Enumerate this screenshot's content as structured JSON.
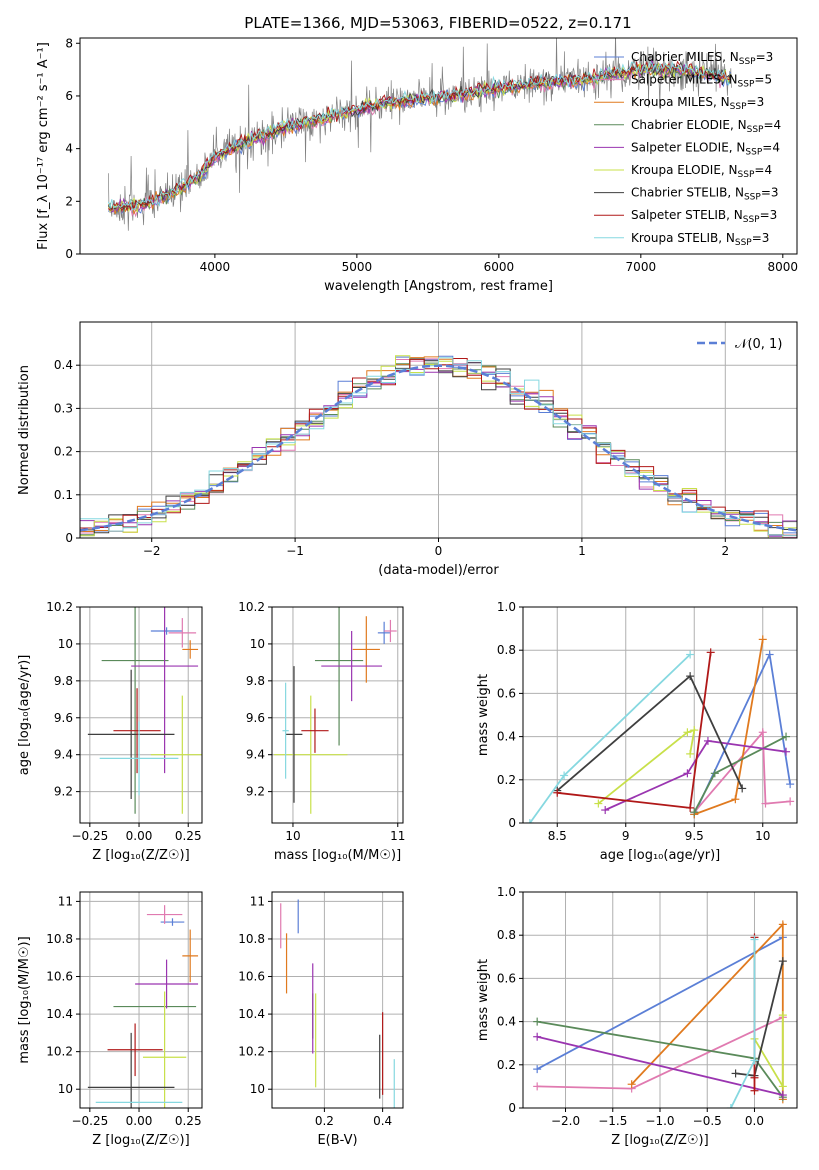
{
  "title": "PLATE=1366, MJD=53063, FIBERID=0522, z=0.171",
  "colors": {
    "Chabrier MILES": "#5b7fd6",
    "Salpeter MILES": "#e07ab0",
    "Kroupa MILES": "#e07a1f",
    "Chabrier ELODIE": "#5a8a5a",
    "Salpeter ELODIE": "#9a35b0",
    "Kroupa ELODIE": "#c8e04a",
    "Chabrier STELIB": "#3f3f3f",
    "Salpeter STELIB": "#b01818",
    "Kroupa STELIB": "#86d8e0",
    "spectrum": "#808080",
    "normal": "#5b7fd6",
    "grid": "#b0b0b0"
  },
  "chart_data": [
    {
      "type": "line",
      "id": "spectrum",
      "title": "PLATE=1366, MJD=53063, FIBERID=0522, z=0.171",
      "xlabel": "wavelength [Angstrom, rest frame]",
      "ylabel": "Flux [f_λ 10⁻¹⁷ erg cm⁻² s⁻¹ A⁻¹]",
      "xlim": [
        3050,
        8100
      ],
      "ylim": [
        0,
        8.2
      ],
      "xticks": [
        4000,
        5000,
        6000,
        7000,
        8000
      ],
      "yticks": [
        0,
        2,
        4,
        6,
        8
      ],
      "grid": false,
      "legend_position": "top-right",
      "legend": [
        "Chabrier MILES, N_SSP=3",
        "Salpeter MILES, N_SSP=5",
        "Kroupa MILES, N_SSP=3",
        "Chabrier ELODIE, N_SSP=4",
        "Salpeter ELODIE, N_SSP=4",
        "Kroupa ELODIE, N_SSP=4",
        "Chabrier STELIB, N_SSP=3",
        "Salpeter STELIB, N_SSP=3",
        "Kroupa STELIB, N_SSP=3"
      ],
      "continuum": {
        "x": [
          3250,
          3500,
          3700,
          3900,
          4000,
          4200,
          4500,
          4800,
          5000,
          5200,
          5500,
          5800,
          6000,
          6300,
          6600,
          6800,
          7000,
          7200,
          7400,
          7600
        ],
        "y": [
          1.7,
          1.9,
          2.3,
          3.0,
          3.7,
          4.2,
          4.8,
          5.2,
          5.5,
          5.7,
          5.9,
          6.1,
          6.3,
          6.5,
          6.6,
          6.8,
          7.0,
          7.0,
          6.9,
          6.7
        ]
      },
      "data_range": [
        3250,
        7640
      ]
    },
    {
      "type": "bar",
      "id": "residuals",
      "xlabel": "(data-model)/error",
      "ylabel": "Normed distribution",
      "xlim": [
        -2.5,
        2.5
      ],
      "ylim": [
        0,
        0.5
      ],
      "xticks": [
        -2,
        -1,
        0,
        1,
        2
      ],
      "yticks": [
        0.0,
        0.1,
        0.2,
        0.3,
        0.4
      ],
      "grid": true,
      "legend_position": "top-right",
      "legend": [
        "𝒩(0, 1)"
      ],
      "bin_width": 0.1
    },
    {
      "type": "scatter",
      "id": "age-vs-Z",
      "xlabel": "Z [log₁₀(Z/Z☉)]",
      "ylabel": "age  [log₁₀(age/yr)]",
      "xlim": [
        -0.3,
        0.32
      ],
      "ylim": [
        9.03,
        10.2
      ],
      "xticks": [
        -0.25,
        0.0,
        0.25
      ],
      "xticklabels": [
        "−0.25",
        "0.00",
        "0.25"
      ],
      "yticks": [
        9.2,
        9.4,
        9.6,
        9.8,
        10.0,
        10.2
      ],
      "grid": true,
      "points": [
        {
          "series": "Chabrier MILES",
          "x": 0.14,
          "y": 10.07,
          "xerr": 0.08,
          "yerr": 0.02
        },
        {
          "series": "Salpeter MILES",
          "x": 0.22,
          "y": 10.06,
          "xerr": 0.07,
          "yerr": 0.08
        },
        {
          "series": "Kroupa MILES",
          "x": 0.26,
          "y": 9.97,
          "xerr": 0.04,
          "yerr": 0.05
        },
        {
          "series": "Chabrier ELODIE",
          "x": -0.02,
          "y": 9.91,
          "xerr": 0.17,
          "yerr": 0.83
        },
        {
          "series": "Salpeter ELODIE",
          "x": 0.13,
          "y": 9.88,
          "xerr": 0.17,
          "yerr": 0.58
        },
        {
          "series": "Kroupa ELODIE",
          "x": 0.22,
          "y": 9.4,
          "xerr": 0.16,
          "yerr": 0.32
        },
        {
          "series": "Chabrier STELIB",
          "x": -0.04,
          "y": 9.51,
          "xerr": 0.22,
          "yerr": 0.35
        },
        {
          "series": "Salpeter STELIB",
          "x": -0.01,
          "y": 9.53,
          "xerr": 0.12,
          "yerr": 0.23
        },
        {
          "series": "Kroupa STELIB",
          "x": 0.0,
          "y": 9.38,
          "xerr": 0.2,
          "yerr": 0.2
        }
      ]
    },
    {
      "type": "scatter",
      "id": "age-vs-mass",
      "xlabel": "mass [log₁₀(M/M☉)]",
      "ylabel": "",
      "xlim": [
        9.8,
        11.05
      ],
      "ylim": [
        9.03,
        10.2
      ],
      "xticks": [
        10,
        11
      ],
      "yticks": [
        9.2,
        9.4,
        9.6,
        9.8,
        10.0,
        10.2
      ],
      "grid": true,
      "points": [
        {
          "series": "Chabrier MILES",
          "x": 10.87,
          "y": 10.06,
          "xerr": 0.06,
          "yerr": 0.06
        },
        {
          "series": "Salpeter MILES",
          "x": 10.93,
          "y": 10.07,
          "xerr": 0.06,
          "yerr": 0.06
        },
        {
          "series": "Kroupa MILES",
          "x": 10.7,
          "y": 9.97,
          "xerr": 0.13,
          "yerr": 0.18
        },
        {
          "series": "Chabrier ELODIE",
          "x": 10.44,
          "y": 9.91,
          "xerr": 0.23,
          "yerr": 0.46
        },
        {
          "series": "Salpeter ELODIE",
          "x": 10.56,
          "y": 9.88,
          "xerr": 0.29,
          "yerr": 0.19
        },
        {
          "series": "Kroupa ELODIE",
          "x": 10.17,
          "y": 9.4,
          "xerr": 0.35,
          "yerr": 0.32
        },
        {
          "series": "Chabrier STELIB",
          "x": 10.01,
          "y": 9.51,
          "xerr": 0.08,
          "yerr": 0.37
        },
        {
          "series": "Salpeter STELIB",
          "x": 10.21,
          "y": 9.53,
          "xerr": 0.13,
          "yerr": 0.12
        },
        {
          "series": "Kroupa STELIB",
          "x": 9.93,
          "y": 9.53,
          "xerr": 0.03,
          "yerr": 0.26
        }
      ]
    },
    {
      "type": "line",
      "id": "weight-vs-age",
      "xlabel": "age  [log₁₀(age/yr)]",
      "ylabel": "mass weight",
      "xlim": [
        8.25,
        10.25
      ],
      "ylim": [
        0,
        1.0
      ],
      "xticks": [
        8.5,
        9.0,
        9.5,
        10.0
      ],
      "yticks": [
        0.0,
        0.2,
        0.4,
        0.6,
        0.8,
        1.0
      ],
      "grid": true,
      "series": [
        {
          "name": "Chabrier MILES",
          "x": [
            9.5,
            10.05,
            10.2
          ],
          "y": [
            0.04,
            0.78,
            0.18
          ]
        },
        {
          "name": "Salpeter MILES",
          "x": [
            9.5,
            10.0,
            10.02,
            10.2
          ],
          "y": [
            0.05,
            0.42,
            0.09,
            0.1
          ]
        },
        {
          "name": "Kroupa MILES",
          "x": [
            9.5,
            9.8,
            10.0
          ],
          "y": [
            0.04,
            0.11,
            0.85
          ]
        },
        {
          "name": "Chabrier ELODIE",
          "x": [
            9.5,
            9.65,
            10.17
          ],
          "y": [
            0.05,
            0.23,
            0.4
          ]
        },
        {
          "name": "Salpeter ELODIE",
          "x": [
            8.85,
            9.45,
            9.6,
            10.17
          ],
          "y": [
            0.06,
            0.23,
            0.38,
            0.33
          ]
        },
        {
          "name": "Kroupa ELODIE",
          "x": [
            8.8,
            9.45,
            9.5,
            9.47
          ],
          "y": [
            0.09,
            0.42,
            0.43,
            0.32
          ]
        },
        {
          "name": "Chabrier STELIB",
          "x": [
            8.5,
            9.47,
            9.85
          ],
          "y": [
            0.15,
            0.68,
            0.16
          ]
        },
        {
          "name": "Salpeter STELIB",
          "x": [
            8.5,
            9.47,
            9.62
          ],
          "y": [
            0.14,
            0.07,
            0.79
          ]
        },
        {
          "name": "Kroupa STELIB",
          "x": [
            8.3,
            8.55,
            9.47
          ],
          "y": [
            0.0,
            0.22,
            0.78
          ]
        }
      ]
    },
    {
      "type": "scatter",
      "id": "mass-vs-Z",
      "xlabel": "Z [log₁₀(Z/Z☉)]",
      "ylabel": "mass [log₁₀(M/M☉)]",
      "xlim": [
        -0.3,
        0.32
      ],
      "ylim": [
        9.9,
        11.05
      ],
      "xticks": [
        -0.25,
        0.0,
        0.25
      ],
      "xticklabels": [
        "−0.25",
        "0.00",
        "0.25"
      ],
      "yticks": [
        10.0,
        10.2,
        10.4,
        10.6,
        10.8,
        11.0
      ],
      "grid": true,
      "points": [
        {
          "series": "Chabrier MILES",
          "x": 0.17,
          "y": 10.89,
          "xerr": 0.06,
          "yerr": 0.02
        },
        {
          "series": "Salpeter MILES",
          "x": 0.13,
          "y": 10.93,
          "xerr": 0.09,
          "yerr": 0.05
        },
        {
          "series": "Kroupa MILES",
          "x": 0.26,
          "y": 10.71,
          "xerr": 0.04,
          "yerr": 0.14
        },
        {
          "series": "Chabrier ELODIE",
          "x": 0.08,
          "y": 10.44,
          "xerr": 0.21,
          "yerr": 0.0
        },
        {
          "series": "Salpeter ELODIE",
          "x": 0.14,
          "y": 10.56,
          "xerr": 0.16,
          "yerr": 0.13
        },
        {
          "series": "Kroupa ELODIE",
          "x": 0.13,
          "y": 10.17,
          "xerr": 0.11,
          "yerr": 0.35
        },
        {
          "series": "Chabrier STELIB",
          "x": -0.04,
          "y": 10.01,
          "xerr": 0.22,
          "yerr": 0.29
        },
        {
          "series": "Salpeter STELIB",
          "x": -0.02,
          "y": 10.21,
          "xerr": 0.14,
          "yerr": 0.14
        },
        {
          "series": "Kroupa STELIB",
          "x": 0.0,
          "y": 9.93,
          "xerr": 0.22,
          "yerr": 0.0
        }
      ]
    },
    {
      "type": "scatter",
      "id": "mass-vs-ebv",
      "xlabel": "E(B-V)",
      "ylabel": "",
      "xlim": [
        0.02,
        0.47
      ],
      "ylim": [
        9.9,
        11.05
      ],
      "xticks": [
        0.2,
        0.4
      ],
      "yticks": [
        10.0,
        10.2,
        10.4,
        10.6,
        10.8,
        11.0
      ],
      "grid": true,
      "points": [
        {
          "series": "Chabrier MILES",
          "x": 0.11,
          "y": 10.92,
          "xerr": 0.0,
          "yerr": 0.09
        },
        {
          "series": "Salpeter MILES",
          "x": 0.05,
          "y": 10.87,
          "xerr": 0.0,
          "yerr": 0.12
        },
        {
          "series": "Kroupa MILES",
          "x": 0.07,
          "y": 10.67,
          "xerr": 0.0,
          "yerr": 0.16
        },
        {
          "series": "Chabrier ELODIE",
          "x": 0.16,
          "y": 10.39,
          "xerr": 0.0,
          "yerr": 0.12
        },
        {
          "series": "Salpeter ELODIE",
          "x": 0.16,
          "y": 10.43,
          "xerr": 0.0,
          "yerr": 0.24
        },
        {
          "series": "Kroupa ELODIE",
          "x": 0.17,
          "y": 10.26,
          "xerr": 0.0,
          "yerr": 0.25
        },
        {
          "series": "Chabrier STELIB",
          "x": 0.39,
          "y": 10.12,
          "xerr": 0.0,
          "yerr": 0.17
        },
        {
          "series": "Salpeter STELIB",
          "x": 0.4,
          "y": 10.19,
          "xerr": 0.0,
          "yerr": 0.22
        },
        {
          "series": "Kroupa STELIB",
          "x": 0.44,
          "y": 10.02,
          "xerr": 0.0,
          "yerr": 0.14
        }
      ]
    },
    {
      "type": "line",
      "id": "weight-vs-Z",
      "xlabel": "Z [log₁₀(Z/Z☉)]",
      "ylabel": "mass weight",
      "xlim": [
        -2.45,
        0.45
      ],
      "ylim": [
        0,
        1.0
      ],
      "xticks": [
        -2.0,
        -1.5,
        -1.0,
        -0.5,
        0.0
      ],
      "xticklabels": [
        "−2.0",
        "−1.5",
        "−1.0",
        "−0.5",
        "0.0"
      ],
      "yticks": [
        0.0,
        0.2,
        0.4,
        0.6,
        0.8,
        1.0
      ],
      "grid": true,
      "series": [
        {
          "name": "Chabrier MILES",
          "x": [
            -2.3,
            0.3
          ],
          "y": [
            0.18,
            0.79
          ]
        },
        {
          "name": "Salpeter MILES",
          "x": [
            -2.3,
            -1.3,
            0.3
          ],
          "y": [
            0.1,
            0.09,
            0.42
          ]
        },
        {
          "name": "Kroupa MILES",
          "x": [
            -1.3,
            0.3,
            0.3
          ],
          "y": [
            0.11,
            0.85,
            0.04
          ]
        },
        {
          "name": "Chabrier ELODIE",
          "x": [
            -2.3,
            0.0,
            0.3
          ],
          "y": [
            0.4,
            0.23,
            0.05
          ]
        },
        {
          "name": "Salpeter ELODIE",
          "x": [
            -2.3,
            0.3
          ],
          "y": [
            0.33,
            0.06
          ]
        },
        {
          "name": "Kroupa ELODIE",
          "x": [
            0.0,
            0.3,
            0.3
          ],
          "y": [
            0.32,
            0.1,
            0.43
          ]
        },
        {
          "name": "Chabrier STELIB",
          "x": [
            -0.2,
            0.0,
            0.3
          ],
          "y": [
            0.16,
            0.15,
            0.68
          ]
        },
        {
          "name": "Salpeter STELIB",
          "x": [
            0.0,
            0.0,
            0.0
          ],
          "y": [
            0.08,
            0.14,
            0.79
          ]
        },
        {
          "name": "Kroupa STELIB",
          "x": [
            -0.25,
            0.0,
            0.0
          ],
          "y": [
            0.0,
            0.22,
            0.78
          ]
        }
      ]
    }
  ]
}
